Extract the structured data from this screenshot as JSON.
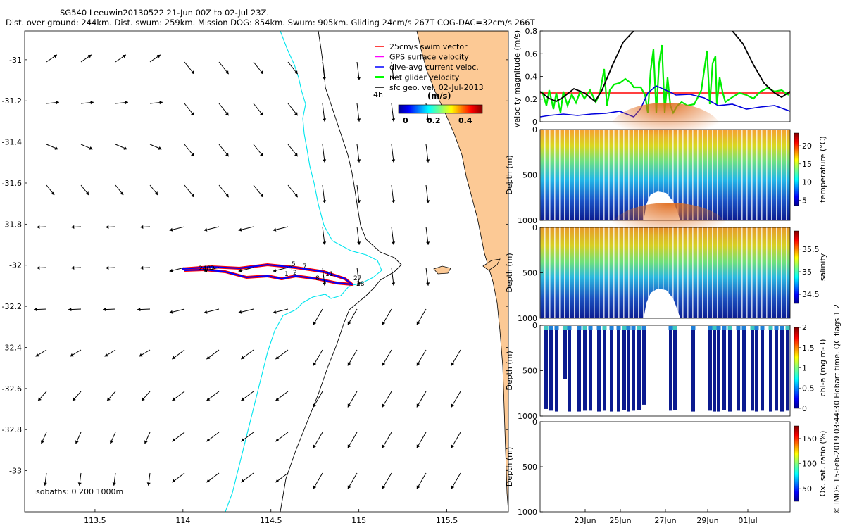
{
  "header": {
    "line1": "SG540 Leeuwin20130522 21-Jun 00Z to 02-Jul 23Z.",
    "line2": "Dist. over ground: 244km. Dist. swum: 259km. Mission DOG: 854km. Swum: 905km. Gliding 24cm/s 267T COG-DAC=32cm/s 266T"
  },
  "map": {
    "lat_ticks": [
      "-31",
      "-31.2",
      "-31.4",
      "-31.6",
      "-31.8",
      "-32",
      "-32.2",
      "-32.4",
      "-32.6",
      "-32.8",
      "-33"
    ],
    "lat_values": [
      -31,
      -31.2,
      -31.4,
      -31.6,
      -31.8,
      -32,
      -32.2,
      -32.4,
      -32.6,
      -32.8,
      -33
    ],
    "lon_ticks": [
      "113.5",
      "114",
      "114.5",
      "115",
      "115.5"
    ],
    "lon_values": [
      113.5,
      114,
      114.5,
      115,
      115.5
    ],
    "xlim": [
      113.1,
      115.85
    ],
    "ylim": [
      -33.2,
      -30.86
    ],
    "legend": [
      {
        "label": "25cm/s swim vector",
        "color": "#ff0000"
      },
      {
        "label": "GPS surface velocity",
        "color": "#ff00ff"
      },
      {
        "label": "dive-avg current veloc.",
        "color": "#0000ff"
      },
      {
        "label": "net glider velocity",
        "color": "#00ff00"
      },
      {
        "label": "sfc geo. vel. 02-Jul-2013",
        "color": "#000000"
      }
    ],
    "colorbar_label": "(m/s)",
    "colorbar_ticks": [
      "0",
      "0.2",
      "0.4"
    ],
    "legend_side_label": "4h",
    "isobaths_label": "isobaths: 0   200   1000m",
    "track_labels": [
      "2482",
      "1",
      "2",
      "3",
      "5",
      "7",
      "8",
      "11",
      "27",
      "28"
    ],
    "colors": {
      "land": "#fcc995",
      "contour_200": "#00e5ee",
      "contour_1000": "#000000",
      "track": "#0000ff",
      "swim": "#ff0000"
    }
  },
  "velocity_panel": {
    "ylabel": "velocity magnitude (m/s)",
    "yticks": [
      "0",
      "0.2",
      "0.4",
      "0.6",
      "0.8"
    ],
    "ylim": [
      0,
      0.8
    ],
    "swim_constant": 0.25
  },
  "sections": [
    {
      "name": "temperature",
      "cbar_label": "temperature (°C)",
      "cbar_ticks": [
        "5",
        "10",
        "15",
        "20"
      ]
    },
    {
      "name": "salinity",
      "cbar_label": "salinity",
      "cbar_ticks": [
        "34.5",
        "35",
        "35.5"
      ]
    },
    {
      "name": "chl-a",
      "cbar_label": "chl-a (mg m-3)",
      "cbar_ticks": [
        "0",
        "0.5",
        "1",
        "1.5",
        "2"
      ]
    },
    {
      "name": "oxygen",
      "cbar_label": "Ox. sat. ratio (%)",
      "cbar_ticks": [
        "50",
        "100",
        "150"
      ]
    }
  ],
  "depth_ylabel": "Depth (m)",
  "depth_ticks": [
    "0",
    "500",
    "1000"
  ],
  "date_ticks": [
    "23Jun",
    "25Jun",
    "27Jun",
    "29Jun",
    "01Jul"
  ],
  "side_note": "© IMOS 15-Feb-2019 03:44:30 Hobart time. QC flags 1  2"
}
